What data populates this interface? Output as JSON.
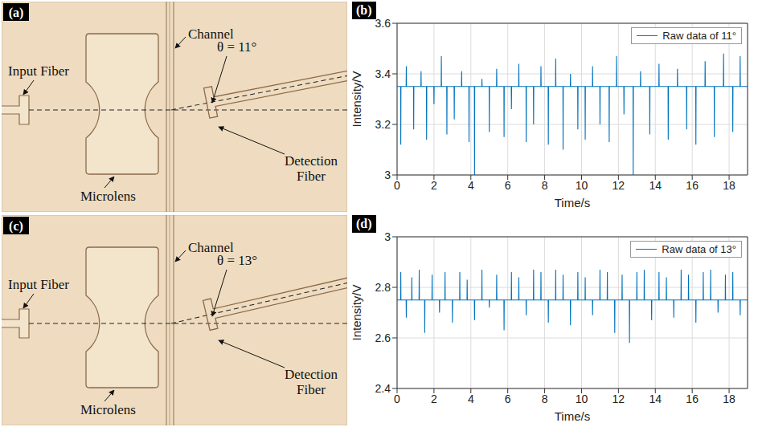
{
  "diagrams": [
    {
      "panel_label": "(a)",
      "angle": 11,
      "labels": {
        "input_fiber": "Input Fiber",
        "channel": "Channel",
        "angle": "θ = 11°",
        "detection_fiber": "Detection Fiber",
        "microlens": "Microlens"
      }
    },
    {
      "panel_label": "(c)",
      "angle": 13,
      "labels": {
        "input_fiber": "Input Fiber",
        "channel": "Channel",
        "angle": "θ = 13°",
        "detection_fiber": "Detection Fiber",
        "microlens": "Microlens"
      }
    }
  ],
  "chart_data": [
    {
      "type": "line",
      "panel_label": "(b)",
      "x_label": "Time/s",
      "y_label": "Intensity/V",
      "xlim": [
        0,
        19
      ],
      "xticks": [
        0,
        2,
        4,
        6,
        8,
        10,
        12,
        14,
        16,
        18
      ],
      "ylim": [
        3,
        3.6
      ],
      "yticks": [
        3,
        3.2,
        3.4,
        3.6
      ],
      "grid": true,
      "legend": "upper right",
      "x": [
        0,
        0.19,
        0.2,
        0.21,
        0.49,
        0.5,
        0.51,
        0.89,
        0.9,
        0.91,
        1.29,
        1.3,
        1.31,
        1.59,
        1.6,
        1.61,
        1.99,
        2,
        2.01,
        2.39,
        2.4,
        2.41,
        2.69,
        2.7,
        2.71,
        3.09,
        3.1,
        3.11,
        3.49,
        3.5,
        3.51,
        3.89,
        3.9,
        3.91,
        4.19,
        4.2,
        4.21,
        4.59,
        4.6,
        4.61,
        4.99,
        5,
        5.01,
        5.39,
        5.4,
        5.41,
        5.79,
        5.8,
        5.81,
        6.19,
        6.2,
        6.21,
        6.59,
        6.6,
        6.61,
        6.99,
        7,
        7.01,
        7.39,
        7.4,
        7.41,
        7.79,
        7.8,
        7.81,
        8.19,
        8.2,
        8.21,
        8.59,
        8.6,
        8.61,
        8.99,
        9,
        9.01,
        9.39,
        9.4,
        9.41,
        9.79,
        9.8,
        9.81,
        10.19,
        10.2,
        10.21,
        10.59,
        10.6,
        10.61,
        10.99,
        11,
        11.01,
        11.49,
        11.5,
        11.51,
        11.89,
        11.9,
        11.91,
        12.29,
        12.3,
        12.31,
        12.79,
        12.8,
        12.81,
        13.19,
        13.2,
        13.21,
        13.69,
        13.7,
        13.71,
        14.19,
        14.2,
        14.21,
        14.69,
        14.7,
        14.71,
        15.19,
        15.2,
        15.21,
        15.69,
        15.7,
        15.71,
        16.19,
        16.2,
        16.21,
        16.69,
        16.7,
        16.71,
        17.19,
        17.2,
        17.21,
        17.69,
        17.7,
        17.71,
        18.19,
        18.2,
        18.21,
        18.59,
        18.6,
        18.61,
        19
      ],
      "series": [
        {
          "name": "Raw data of 11°",
          "color": "#0072bd",
          "values": [
            3.35,
            3.35,
            3.12,
            3.35,
            3.35,
            3.43,
            3.35,
            3.35,
            3.18,
            3.35,
            3.35,
            3.41,
            3.35,
            3.35,
            3.14,
            3.35,
            3.35,
            3.28,
            3.35,
            3.35,
            3.47,
            3.35,
            3.35,
            3.16,
            3.35,
            3.35,
            3.22,
            3.35,
            3.35,
            3.41,
            3.35,
            3.35,
            3.13,
            3.35,
            3.35,
            3,
            3.35,
            3.35,
            3.38,
            3.35,
            3.35,
            3.17,
            3.35,
            3.35,
            3.42,
            3.35,
            3.35,
            3.15,
            3.35,
            3.35,
            3.26,
            3.35,
            3.35,
            3.44,
            3.35,
            3.35,
            3.13,
            3.35,
            3.35,
            3.2,
            3.35,
            3.35,
            3.43,
            3.35,
            3.35,
            3.12,
            3.35,
            3.35,
            3.46,
            3.35,
            3.35,
            3.1,
            3.35,
            3.35,
            3.4,
            3.35,
            3.35,
            3.18,
            3.35,
            3.35,
            3.14,
            3.35,
            3.35,
            3.43,
            3.35,
            3.35,
            3.2,
            3.35,
            3.35,
            3.13,
            3.35,
            3.35,
            3.47,
            3.35,
            3.35,
            3.24,
            3.35,
            3.35,
            3,
            3.35,
            3.35,
            3.41,
            3.35,
            3.35,
            3.16,
            3.35,
            3.35,
            3.44,
            3.35,
            3.35,
            3.14,
            3.35,
            3.35,
            3.42,
            3.35,
            3.35,
            3.18,
            3.35,
            3.35,
            3.12,
            3.35,
            3.35,
            3.45,
            3.35,
            3.35,
            3.15,
            3.35,
            3.35,
            3.48,
            3.35,
            3.35,
            3.17,
            3.35,
            3.35,
            3.47,
            3.35,
            3.35
          ]
        }
      ]
    },
    {
      "type": "line",
      "panel_label": "(d)",
      "x_label": "Time/s",
      "y_label": "Intensity/V",
      "xlim": [
        0,
        19
      ],
      "xticks": [
        0,
        2,
        4,
        6,
        8,
        10,
        12,
        14,
        16,
        18
      ],
      "ylim": [
        2.4,
        3
      ],
      "yticks": [
        2.4,
        2.6,
        2.8,
        3
      ],
      "grid": true,
      "legend": "upper right",
      "x": [
        0,
        0.19,
        0.2,
        0.21,
        0.49,
        0.5,
        0.51,
        0.79,
        0.8,
        0.81,
        1.19,
        1.2,
        1.21,
        1.49,
        1.5,
        1.51,
        1.89,
        1.9,
        1.91,
        2.29,
        2.3,
        2.31,
        2.59,
        2.6,
        2.61,
        2.99,
        3,
        3.01,
        3.39,
        3.4,
        3.41,
        3.79,
        3.8,
        3.81,
        4.19,
        4.2,
        4.21,
        4.59,
        4.6,
        4.61,
        4.99,
        5,
        5.01,
        5.39,
        5.4,
        5.41,
        5.79,
        5.8,
        5.81,
        6.19,
        6.2,
        6.21,
        6.59,
        6.6,
        6.61,
        6.99,
        7,
        7.01,
        7.39,
        7.4,
        7.41,
        7.79,
        7.8,
        7.81,
        8.19,
        8.2,
        8.21,
        8.59,
        8.6,
        8.61,
        8.99,
        9,
        9.01,
        9.39,
        9.4,
        9.41,
        9.79,
        9.8,
        9.81,
        10.19,
        10.2,
        10.21,
        10.59,
        10.6,
        10.61,
        10.99,
        11,
        11.01,
        11.39,
        11.4,
        11.41,
        11.79,
        11.8,
        11.81,
        12.19,
        12.2,
        12.21,
        12.59,
        12.6,
        12.61,
        12.99,
        13,
        13.01,
        13.39,
        13.4,
        13.41,
        13.79,
        13.8,
        13.81,
        14.19,
        14.2,
        14.21,
        14.59,
        14.6,
        14.61,
        14.99,
        15,
        15.01,
        15.39,
        15.4,
        15.41,
        15.79,
        15.8,
        15.81,
        16.19,
        16.2,
        16.21,
        16.59,
        16.6,
        16.61,
        16.99,
        17,
        17.01,
        17.39,
        17.4,
        17.41,
        17.79,
        17.8,
        17.81,
        18.19,
        18.2,
        18.21,
        18.59,
        18.6,
        18.61,
        19
      ],
      "series": [
        {
          "name": "Raw data of 13°",
          "color": "#0072bd",
          "values": [
            2.75,
            2.75,
            2.86,
            2.75,
            2.75,
            2.68,
            2.75,
            2.75,
            2.84,
            2.75,
            2.75,
            2.87,
            2.75,
            2.75,
            2.62,
            2.75,
            2.75,
            2.85,
            2.75,
            2.75,
            2.7,
            2.75,
            2.75,
            2.86,
            2.75,
            2.75,
            2.66,
            2.75,
            2.75,
            2.86,
            2.75,
            2.75,
            2.83,
            2.75,
            2.75,
            2.67,
            2.75,
            2.75,
            2.87,
            2.75,
            2.75,
            2.72,
            2.75,
            2.75,
            2.85,
            2.75,
            2.75,
            2.63,
            2.75,
            2.75,
            2.86,
            2.75,
            2.75,
            2.84,
            2.75,
            2.75,
            2.69,
            2.75,
            2.75,
            2.87,
            2.75,
            2.75,
            2.86,
            2.75,
            2.75,
            2.66,
            2.75,
            2.75,
            2.87,
            2.75,
            2.75,
            2.85,
            2.75,
            2.75,
            2.65,
            2.75,
            2.75,
            2.86,
            2.75,
            2.75,
            2.84,
            2.75,
            2.75,
            2.69,
            2.75,
            2.75,
            2.87,
            2.75,
            2.75,
            2.86,
            2.75,
            2.75,
            2.62,
            2.75,
            2.75,
            2.85,
            2.75,
            2.75,
            2.58,
            2.75,
            2.75,
            2.86,
            2.75,
            2.75,
            2.87,
            2.75,
            2.75,
            2.67,
            2.75,
            2.75,
            2.86,
            2.75,
            2.75,
            2.84,
            2.75,
            2.75,
            2.68,
            2.75,
            2.75,
            2.87,
            2.75,
            2.75,
            2.85,
            2.75,
            2.75,
            2.66,
            2.75,
            2.75,
            2.86,
            2.75,
            2.75,
            2.87,
            2.75,
            2.75,
            2.7,
            2.75,
            2.75,
            2.85,
            2.75,
            2.75,
            2.86,
            2.75,
            2.75,
            2.69,
            2.75,
            2.75
          ]
        }
      ]
    }
  ]
}
